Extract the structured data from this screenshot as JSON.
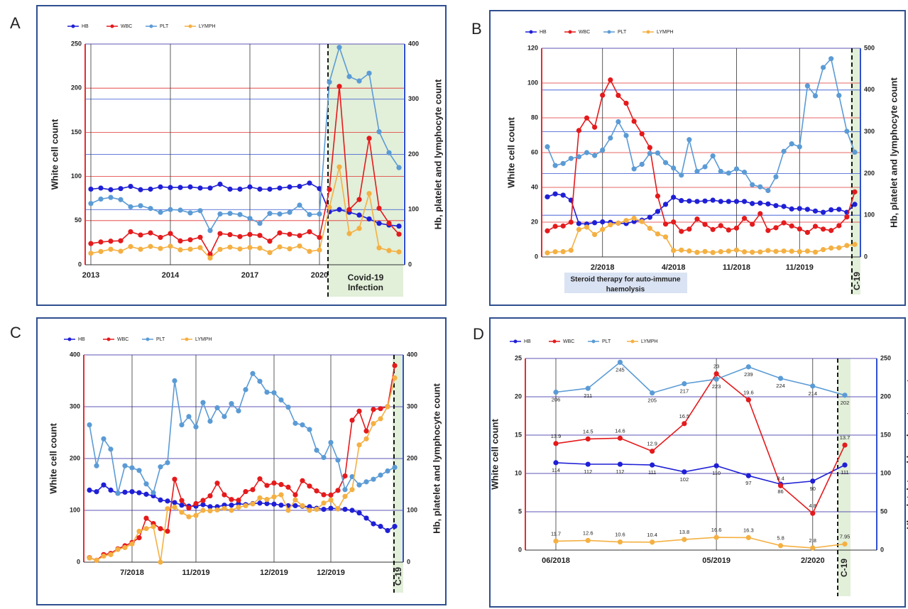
{
  "chart_data": [
    {
      "label": "A",
      "type": "line",
      "categories": [
        "2013",
        null,
        null,
        null,
        null,
        null,
        null,
        null,
        "2014",
        null,
        null,
        null,
        null,
        null,
        null,
        null,
        "2017",
        null,
        null,
        null,
        null,
        null,
        null,
        "2020",
        null,
        null,
        null,
        null,
        null,
        null,
        null,
        null
      ],
      "series": [
        {
          "name": "HB",
          "color": "#1f1fd6",
          "axis": "y2",
          "values": [
            137,
            139,
            136,
            138,
            142,
            136,
            137,
            141,
            140,
            140,
            141,
            139,
            139,
            146,
            137,
            137,
            141,
            137,
            137,
            139,
            141,
            142,
            148,
            138,
            96,
            100,
            95,
            90,
            83,
            75,
            72,
            70
          ]
        },
        {
          "name": "WBC",
          "color": "#e41a1c",
          "values": [
            24,
            25.8,
            26.7,
            27.2,
            37.4,
            33.7,
            36.1,
            31.0,
            35.4,
            27,
            28.3,
            31.1,
            12.1,
            35.3,
            34.1,
            31.9,
            34.3,
            33.2,
            26.7,
            36.1,
            34.5,
            33,
            37.4,
            31,
            85.26,
            202.02,
            62.42,
            73.88,
            143.2,
            63.96,
            47,
            34.63
          ]
        },
        {
          "name": "PLT",
          "color": "#5b9bd5",
          "axis": "y2",
          "values": [
            111,
            119,
            122,
            118,
            105,
            107,
            102,
            95,
            100,
            99,
            94,
            98,
            62,
            92,
            93,
            91,
            84,
            75,
            93,
            92,
            95,
            108,
            91,
            92,
            331,
            394,
            341,
            333,
            347,
            241,
            203,
            176
          ]
        },
        {
          "name": "LYMPH",
          "color": "#f4b042",
          "axis": "y2",
          "values": [
            20.8,
            24,
            28,
            24.5,
            33,
            28.1,
            33.2,
            29.5,
            33.6,
            27,
            28.2,
            31,
            12.1,
            27.9,
            31.9,
            28.6,
            31.2,
            30.1,
            22.1,
            32.3,
            28.9,
            34,
            24.2,
            26.7,
            104,
            177.25,
            56.41,
            65.83,
            128.97,
            30.59,
            25.68,
            23.31
          ]
        }
      ],
      "ylim": [
        0,
        250
      ],
      "yticks": [
        0,
        50,
        100,
        150,
        200,
        250
      ],
      "y2lim": [
        0,
        400
      ],
      "y2ticks": [
        0,
        100,
        200,
        300,
        400
      ],
      "ylabel": "White cell count",
      "y2label": "Hb, platelet and lymphocyte  count",
      "annotations": [
        [
          "Covid-19",
          "Infection"
        ]
      ],
      "data_labels": false
    },
    {
      "label": "B",
      "type": "line",
      "categories": [
        null,
        null,
        null,
        null,
        null,
        null,
        null,
        "2/2018",
        null,
        null,
        null,
        null,
        null,
        null,
        null,
        null,
        "4/2018",
        null,
        null,
        null,
        null,
        null,
        null,
        null,
        "11/2018",
        null,
        null,
        null,
        null,
        null,
        null,
        null,
        "11/2019",
        null,
        null,
        null,
        null,
        null,
        null,
        null
      ],
      "series": [
        {
          "name": "HB",
          "color": "#1f1fd6",
          "axis": "y2",
          "values": [
            144,
            151,
            148,
            136,
            80,
            79,
            82,
            84,
            83,
            81,
            80,
            85,
            88,
            95,
            109,
            126,
            143,
            135,
            134,
            133,
            134,
            136,
            133,
            133,
            133,
            133,
            128,
            129,
            127,
            123,
            121,
            115,
            116,
            114,
            110,
            107,
            113,
            114,
            107,
            126
          ]
        },
        {
          "name": "WBC",
          "color": "#e41a1c",
          "values": [
            15,
            17.6,
            17.8,
            20,
            72.7,
            79.9,
            74.6,
            93,
            101.8,
            92.9,
            88.4,
            78,
            70.8,
            62.9,
            35,
            18.9,
            20.1,
            14.7,
            16,
            21.8,
            18.7,
            15.8,
            18,
            15.5,
            16.6,
            22.2,
            18.8,
            24.9,
            15.2,
            16.8,
            19.6,
            17.8,
            16.1,
            14.1,
            17.6,
            16,
            15.2,
            18,
            23,
            37.4
          ]
        },
        {
          "name": "PLT",
          "color": "#5b9bd5",
          "axis": "y2",
          "values": [
            264,
            219,
            224,
            236,
            240,
            250,
            243,
            256,
            285,
            324,
            291,
            211,
            222,
            248,
            249,
            226,
            213,
            196,
            281,
            205,
            216,
            242,
            205,
            201,
            211,
            203,
            173,
            168,
            159,
            192,
            253,
            271,
            264,
            410,
            386,
            454,
            475,
            387,
            301,
            251
          ]
        },
        {
          "name": "LYMPH",
          "color": "#f4b042",
          "axis": "y2",
          "values": [
            9.8,
            12.4,
            12.7,
            15.9,
            65.8,
            71.4,
            53.6,
            65.9,
            77,
            81,
            87.3,
            92.7,
            84.8,
            68.5,
            55.2,
            47.9,
            15.4,
            16.4,
            14.4,
            11,
            13,
            10.6,
            12.7,
            14,
            16.6,
            12.3,
            11.4,
            12,
            15.4,
            13.3,
            14.1,
            13.6,
            12.7,
            14,
            11.6,
            17.6,
            21.3,
            21.9,
            27.4,
            30
          ]
        }
      ],
      "ylim": [
        0,
        120
      ],
      "yticks": [
        0,
        20,
        40,
        60,
        80,
        100,
        120
      ],
      "y2lim": [
        0,
        500
      ],
      "y2ticks": [
        0,
        100,
        200,
        300,
        400,
        500
      ],
      "ylabel": "White cell count",
      "y2label": "Hb, platelet and lymphocyte  count",
      "annotations": [
        [
          "Steroid therapy for auto-immune",
          "haemolysis"
        ],
        [
          "C-19"
        ]
      ],
      "data_labels": false
    },
    {
      "label": "C",
      "type": "line",
      "categories": [
        null,
        null,
        null,
        null,
        null,
        null,
        "7/2018",
        null,
        null,
        null,
        null,
        null,
        null,
        null,
        null,
        "11/2019",
        null,
        null,
        null,
        null,
        null,
        null,
        null,
        null,
        null,
        null,
        "12/2019",
        null,
        null,
        null,
        null,
        null,
        null,
        null,
        "12/2019",
        null,
        null,
        null,
        null,
        null,
        null,
        null,
        null,
        null
      ],
      "series": [
        {
          "name": "HB",
          "color": "#1f1fd6",
          "axis": "y2",
          "values": [
            139,
            136,
            149,
            139,
            133,
            135,
            136,
            134,
            131,
            128,
            120,
            118,
            115,
            110,
            108,
            108,
            111,
            107,
            107,
            110,
            110,
            113,
            111,
            113,
            114,
            113,
            112,
            110,
            109,
            109,
            108,
            107,
            104,
            102,
            104,
            103,
            102,
            100,
            95,
            85,
            74,
            69,
            61,
            69
          ]
        },
        {
          "name": "WBC",
          "color": "#e41a1c",
          "values": [
            8.68,
            3.6,
            14.6,
            16.9,
            25.7,
            31.7,
            38,
            47.1,
            84.8,
            74.5,
            64.6,
            59.7,
            160,
            119,
            104.5,
            113,
            119.2,
            128,
            152.4,
            130,
            121,
            119.5,
            136.2,
            139.9,
            160.8,
            148,
            152.7,
            149.8,
            144.7,
            130,
            157.2,
            146.8,
            137.5,
            130.1,
            129.6,
            138.5,
            166.3,
            273.9,
            291.4,
            253.1,
            294.7,
            296.3,
            300.2,
            379.4
          ]
        },
        {
          "name": "PLT",
          "color": "#5b9bd5",
          "axis": "y2",
          "values": [
            265,
            186,
            238,
            218,
            133,
            186,
            182,
            177,
            151,
            134,
            184,
            192,
            350,
            265,
            281,
            261,
            308,
            272,
            298,
            281,
            306,
            292,
            333,
            364,
            349,
            328,
            327,
            313,
            299,
            268,
            265,
            256,
            216,
            202,
            231,
            197,
            140,
            165,
            149,
            155,
            160,
            168,
            176,
            183
          ]
        },
        {
          "name": "LYMPH",
          "color": "#f4b042",
          "axis": "y2",
          "values": [
            8,
            3.6,
            11.7,
            14.6,
            24.5,
            28.2,
            35.1,
            59.7,
            64.8,
            68.5,
            0,
            103.2,
            106,
            96.3,
            87.6,
            90.1,
            100,
            99,
            100.8,
            103.7,
            100,
            106,
            109,
            112.4,
            124,
            121.1,
            126,
            130,
            100,
            120.1,
            109,
            100,
            102,
            114,
            120,
            103,
            127,
            140,
            226.3,
            238,
            267.5,
            276.8,
            300,
            355.6
          ]
        }
      ],
      "ylim": [
        0,
        400
      ],
      "yticks": [
        0,
        100,
        200,
        300,
        400
      ],
      "y2lim": [
        0,
        400
      ],
      "y2ticks": [
        0,
        100,
        200,
        300,
        400
      ],
      "ylabel": "White cell count",
      "y2label": "Hb, platelet and lymphocyte  count",
      "annotations": [
        [
          "C-19"
        ]
      ],
      "data_labels": false
    },
    {
      "label": "D",
      "type": "line",
      "categories": [
        "06/2018",
        null,
        null,
        null,
        null,
        "05/2019",
        null,
        null,
        "2/2020",
        null
      ],
      "series": [
        {
          "name": "HB",
          "color": "#1f1fd6",
          "axis": "y2",
          "values": [
            114,
            112,
            112,
            111,
            102,
            110,
            97,
            86,
            90,
            111
          ]
        },
        {
          "name": "WBC",
          "color": "#e41a1c",
          "values": [
            13.9,
            14.5,
            14.6,
            12.9,
            16.5,
            23,
            19.6,
            8.4,
            4.8,
            13.7
          ]
        },
        {
          "name": "PLT",
          "color": "#5b9bd5",
          "axis": "y2",
          "values": [
            206,
            211,
            245,
            205,
            217,
            223,
            239,
            224,
            214,
            202
          ]
        },
        {
          "name": "LYMPH",
          "color": "#f4b042",
          "axis": "y2",
          "values": [
            11.7,
            12.6,
            10.6,
            10.4,
            13.8,
            16.6,
            16.3,
            5.8,
            2.8,
            7.95
          ]
        }
      ],
      "ylim": [
        0,
        25
      ],
      "yticks": [
        0,
        5,
        10,
        15,
        20,
        25
      ],
      "y2lim": [
        0,
        250
      ],
      "y2ticks": [
        0,
        50,
        100,
        150,
        200,
        250
      ],
      "ylabel": "White cell count",
      "y2label": "Hb, platelet and lymphocyte  count",
      "annotations": [
        [
          "C-19"
        ]
      ],
      "data_labels": true
    }
  ]
}
